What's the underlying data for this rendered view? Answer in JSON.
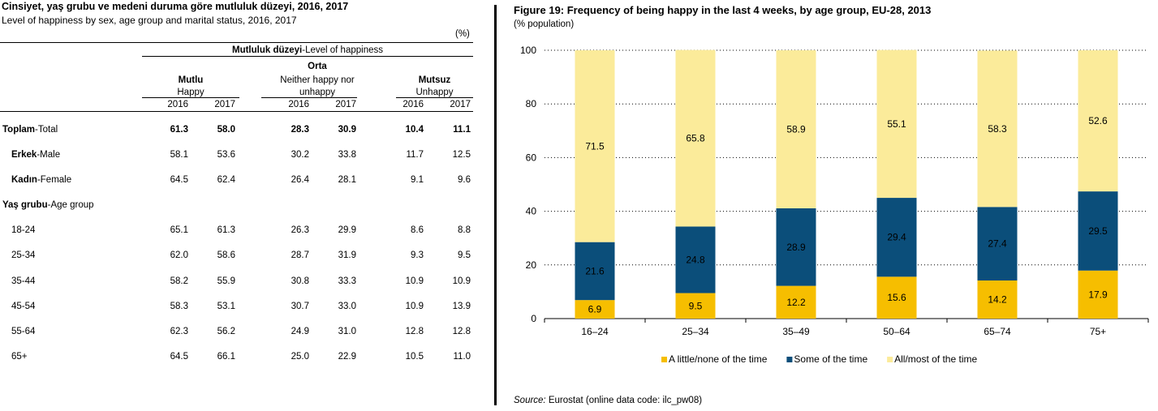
{
  "left_table": {
    "title": "Cinsiyet, yaş grubu ve medeni duruma göre mutluluk düzeyi, 2016, 2017",
    "subtitle": "Level of happiness by sex, age group and marital status, 2016, 2017",
    "unit": "(%)",
    "header": {
      "group_tr": "Mutluluk düzeyi",
      "group_en": "-Level of happiness",
      "col1_tr": "Mutlu",
      "col1_en": "Happy",
      "col2_tr": "Orta",
      "col2_en1": "Neither happy nor",
      "col2_en2": "unhappy",
      "col3_tr": "Mutsuz",
      "col3_en": "Unhappy",
      "years": [
        "2016",
        "2017",
        "2016",
        "2017",
        "2016",
        "2017"
      ]
    },
    "rows": [
      {
        "label_tr": "Toplam",
        "label_en": "-Total",
        "bold": true,
        "values": [
          "61.3",
          "58.0",
          "28.3",
          "30.9",
          "10.4",
          "11.1"
        ]
      },
      {
        "label_tr": "Erkek",
        "label_en": "-Male",
        "values": [
          "58.1",
          "53.6",
          "30.2",
          "33.8",
          "11.7",
          "12.5"
        ]
      },
      {
        "label_tr": "Kadın",
        "label_en": "-Female",
        "values": [
          "64.5",
          "62.4",
          "26.4",
          "28.1",
          "9.1",
          "9.6"
        ]
      },
      {
        "label_tr": "Yaş grubu",
        "label_en": "-Age group",
        "values": []
      },
      {
        "label_tr": "",
        "label_en": "18-24",
        "values": [
          "65.1",
          "61.3",
          "26.3",
          "29.9",
          "8.6",
          "8.8"
        ]
      },
      {
        "label_tr": "",
        "label_en": "25-34",
        "values": [
          "62.0",
          "58.6",
          "28.7",
          "31.9",
          "9.3",
          "9.5"
        ]
      },
      {
        "label_tr": "",
        "label_en": "35-44",
        "values": [
          "58.2",
          "55.9",
          "30.8",
          "33.3",
          "10.9",
          "10.9"
        ]
      },
      {
        "label_tr": "",
        "label_en": "45-54",
        "values": [
          "58.3",
          "53.1",
          "30.7",
          "33.0",
          "10.9",
          "13.9"
        ]
      },
      {
        "label_tr": "",
        "label_en": "55-64",
        "values": [
          "62.3",
          "56.2",
          "24.9",
          "31.0",
          "12.8",
          "12.8"
        ]
      },
      {
        "label_tr": "",
        "label_en": "65+",
        "values": [
          "64.5",
          "66.1",
          "25.0",
          "22.9",
          "10.5",
          "11.0"
        ]
      }
    ]
  },
  "figure": {
    "title": "Figure 19: Frequency of being happy in the last 4 weeks, by age group, EU-28, 2013",
    "subtitle": "(% population)",
    "source_label": "Source:",
    "source_text": " Eurostat (online data code: ilc_pw08)"
  },
  "chart_data": {
    "type": "bar",
    "stacked": true,
    "title": "Figure 19: Frequency of being happy in the last 4 weeks, by age group, EU-28, 2013",
    "subtitle": "(% population)",
    "categories": [
      "16–24",
      "25–34",
      "35–49",
      "50–64",
      "65–74",
      "75+"
    ],
    "series": [
      {
        "name": "A little/none of the time",
        "color": "#F6BE00",
        "values": [
          6.9,
          9.5,
          12.2,
          15.6,
          14.2,
          17.9
        ]
      },
      {
        "name": "Some of the time",
        "color": "#0B4E7A",
        "values": [
          21.6,
          24.8,
          28.9,
          29.4,
          27.4,
          29.5
        ]
      },
      {
        "name": "All/most of the time",
        "color": "#FBEB9A",
        "values": [
          71.5,
          65.8,
          58.9,
          55.1,
          58.3,
          52.6
        ]
      }
    ],
    "ylim": [
      0,
      100
    ],
    "yticks": [
      0,
      20,
      40,
      60,
      80,
      100
    ],
    "grid": true,
    "legend": "bottom"
  }
}
